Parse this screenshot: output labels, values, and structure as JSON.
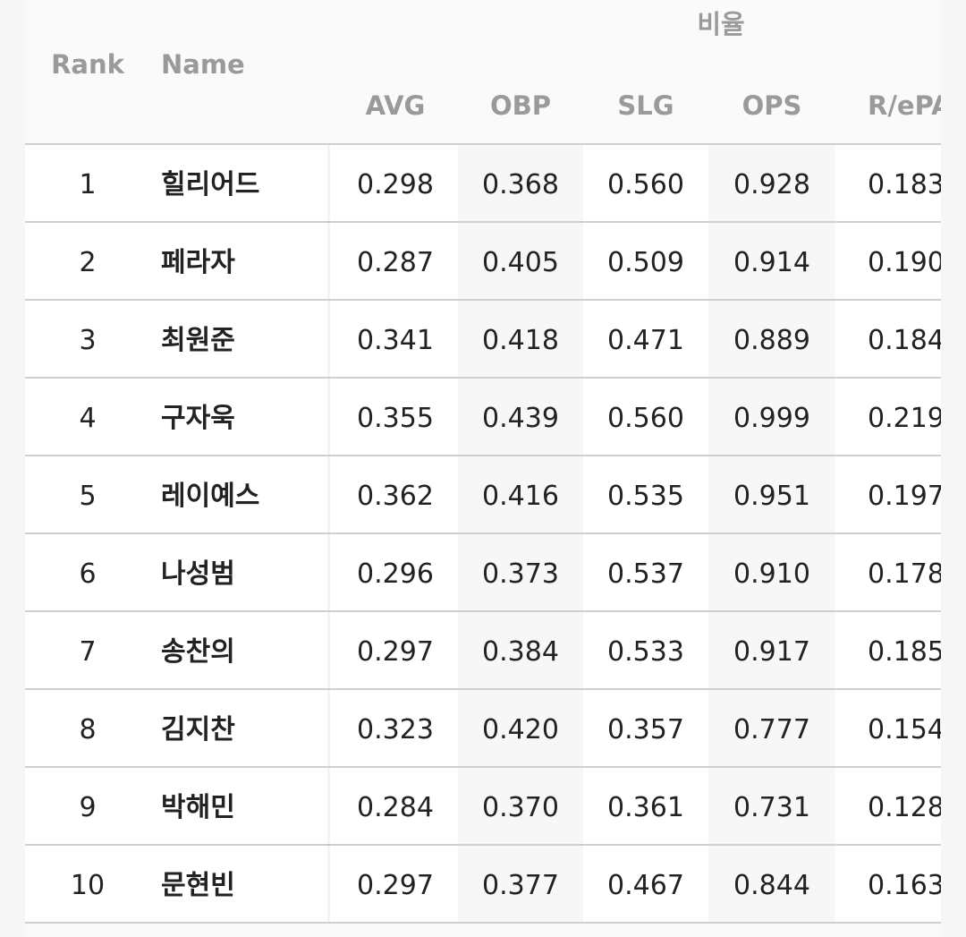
{
  "header": {
    "group": "비율",
    "columns": [
      "Rank",
      "Name",
      "AVG",
      "OBP",
      "SLG",
      "OPS",
      "R/ePA"
    ]
  },
  "table": {
    "rows": [
      [
        "1",
        "힐리어드",
        "0.298",
        "0.368",
        "0.560",
        "0.928",
        "0.183"
      ],
      [
        "2",
        "페라자",
        "0.287",
        "0.405",
        "0.509",
        "0.914",
        "0.190"
      ],
      [
        "3",
        "최원준",
        "0.341",
        "0.418",
        "0.471",
        "0.889",
        "0.184"
      ],
      [
        "4",
        "구자욱",
        "0.355",
        "0.439",
        "0.560",
        "0.999",
        "0.219"
      ],
      [
        "5",
        "레이예스",
        "0.362",
        "0.416",
        "0.535",
        "0.951",
        "0.197"
      ],
      [
        "6",
        "나성범",
        "0.296",
        "0.373",
        "0.537",
        "0.910",
        "0.178"
      ],
      [
        "7",
        "송찬의",
        "0.297",
        "0.384",
        "0.533",
        "0.917",
        "0.185"
      ],
      [
        "8",
        "김지찬",
        "0.323",
        "0.420",
        "0.357",
        "0.777",
        "0.154"
      ],
      [
        "9",
        "박해민",
        "0.284",
        "0.370",
        "0.361",
        "0.731",
        "0.128"
      ],
      [
        "10",
        "문현빈",
        "0.297",
        "0.377",
        "0.467",
        "0.844",
        "0.163"
      ]
    ]
  }
}
